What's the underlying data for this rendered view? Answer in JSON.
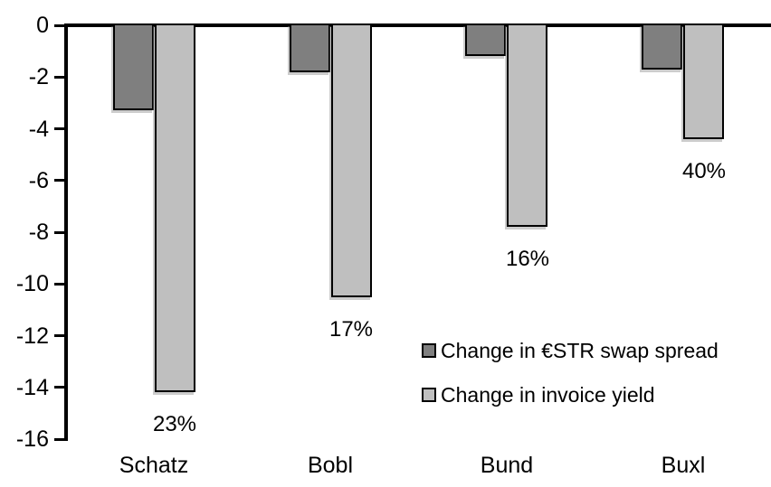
{
  "chart_data": {
    "type": "bar",
    "title": "",
    "xlabel": "",
    "ylabel": "",
    "categories": [
      "Schatz",
      "Bobl",
      "Bund",
      "Buxl"
    ],
    "series": [
      {
        "name": "Change in €STR swap spread",
        "color": "#7F7F7F",
        "values": [
          -3.3,
          -1.8,
          -1.2,
          -1.7
        ]
      },
      {
        "name": "Change in invoice yield",
        "color": "#BFBFBF",
        "values": [
          -14.2,
          -10.5,
          -7.8,
          -4.4
        ],
        "point_labels": [
          "23%",
          "17%",
          "16%",
          "40%"
        ]
      }
    ],
    "ylim": [
      -16,
      0
    ],
    "yticks": [
      0,
      -2,
      -4,
      -6,
      -8,
      -10,
      -12,
      -14,
      -16
    ],
    "grid": false,
    "legend_position": "inside-right",
    "axis_color": "#000000",
    "bar_border_color": "#000000",
    "background": "#FFFFFF"
  }
}
